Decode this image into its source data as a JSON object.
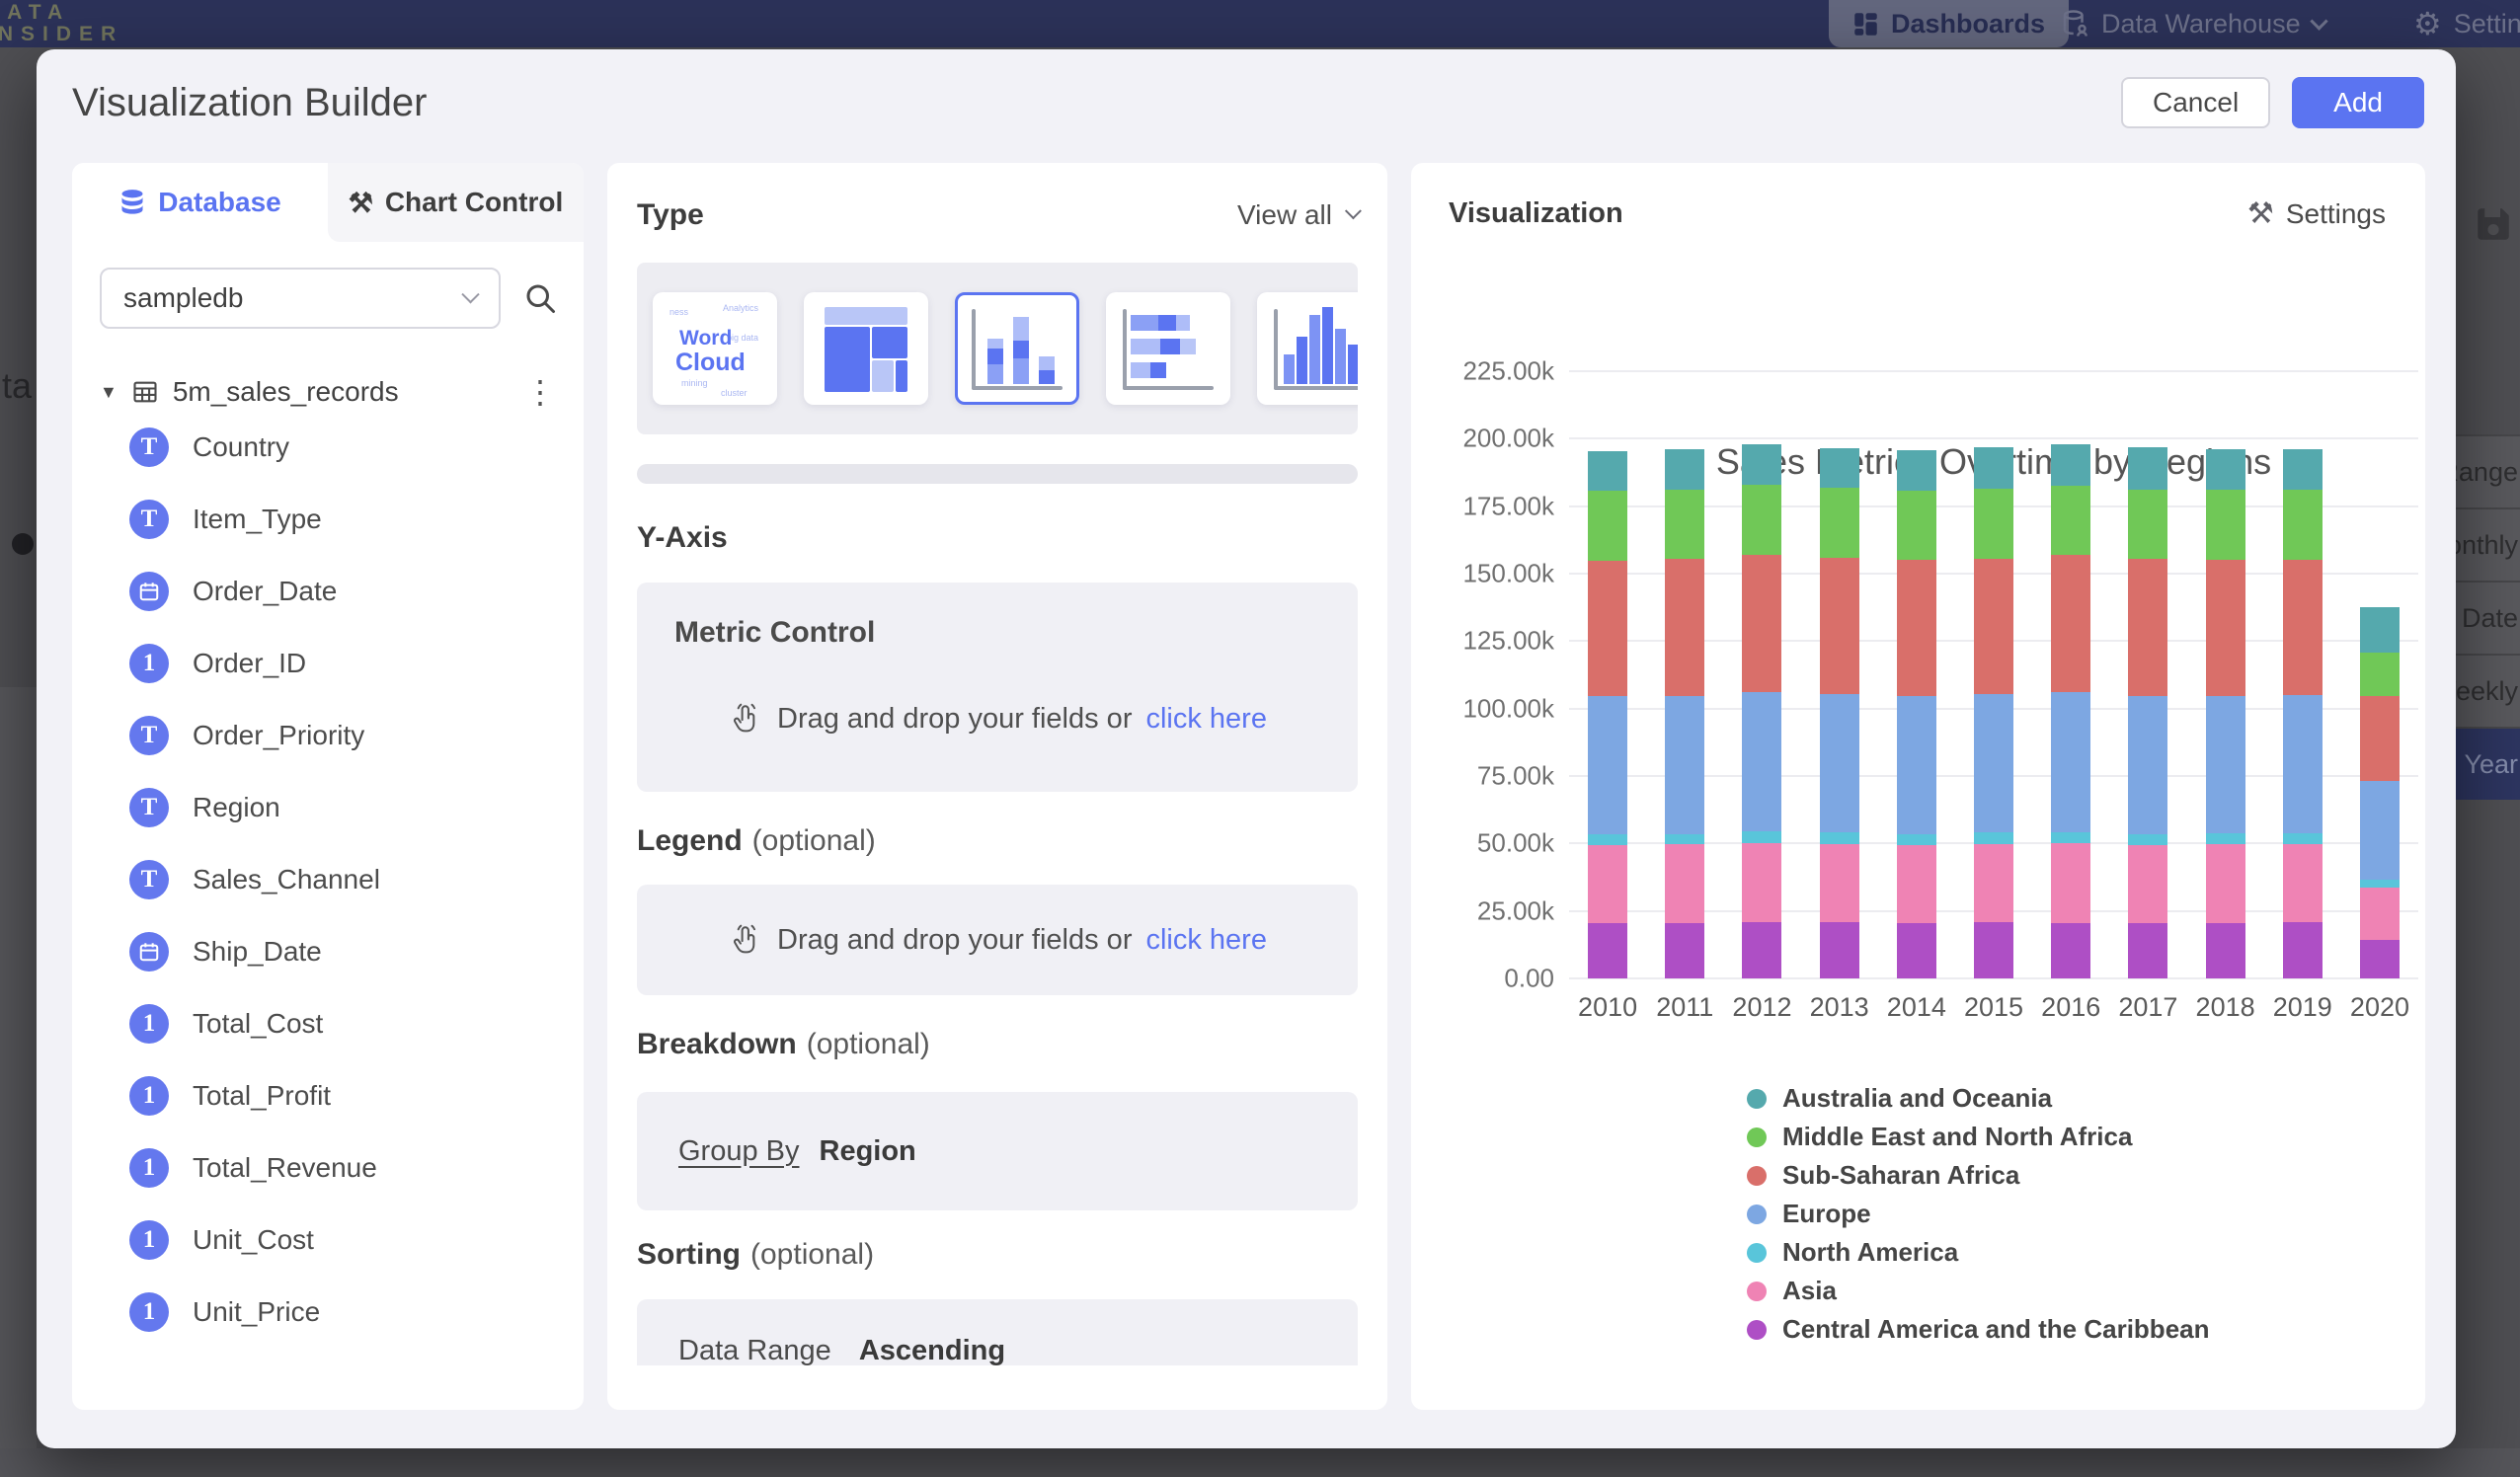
{
  "topbar": {
    "logo_line1": "DATA",
    "logo_line2": "INSIDER",
    "nav": {
      "dashboards": "Dashboards",
      "data_warehouse": "Data Warehouse",
      "settings": "Settings"
    }
  },
  "backdrop": {
    "left_fragment": "ta",
    "menu_items": [
      {
        "label": "Range",
        "selected": false
      },
      {
        "label": "Monthly",
        "selected": false
      },
      {
        "label": "Week Date",
        "selected": false
      },
      {
        "label": "Weekly",
        "selected": false
      },
      {
        "label": "Year",
        "selected": true
      }
    ]
  },
  "modal": {
    "title": "Visualization Builder",
    "cancel_label": "Cancel",
    "add_label": "Add"
  },
  "left_panel": {
    "tabs": {
      "database": "Database",
      "chart_control": "Chart Control"
    },
    "search": {
      "value": "sampledb"
    },
    "table_name": "5m_sales_records",
    "fields": [
      {
        "name": "Country",
        "type": "text"
      },
      {
        "name": "Item_Type",
        "type": "text"
      },
      {
        "name": "Order_Date",
        "type": "date"
      },
      {
        "name": "Order_ID",
        "type": "number"
      },
      {
        "name": "Order_Priority",
        "type": "text"
      },
      {
        "name": "Region",
        "type": "text"
      },
      {
        "name": "Sales_Channel",
        "type": "text"
      },
      {
        "name": "Ship_Date",
        "type": "date"
      },
      {
        "name": "Total_Cost",
        "type": "number"
      },
      {
        "name": "Total_Profit",
        "type": "number"
      },
      {
        "name": "Total_Revenue",
        "type": "number"
      },
      {
        "name": "Unit_Cost",
        "type": "number"
      },
      {
        "name": "Unit_Price",
        "type": "number"
      }
    ]
  },
  "type_section": {
    "title": "Type",
    "view_all": "View all",
    "cards": [
      {
        "kind": "word-cloud",
        "selected": false,
        "word1": "Word",
        "word2": "Cloud",
        "tiny_words": [
          "ness",
          "Analytics",
          "big data",
          "mining",
          "cluster"
        ]
      },
      {
        "kind": "treemap",
        "selected": false
      },
      {
        "kind": "stacked-column",
        "selected": true
      },
      {
        "kind": "stacked-bar",
        "selected": false
      },
      {
        "kind": "histogram",
        "selected": false
      }
    ]
  },
  "yaxis_section": {
    "title": "Y-Axis",
    "panel_title": "Metric Control",
    "drop_text": "Drag and drop your fields or",
    "drop_link": "click here"
  },
  "legend_section": {
    "title": "Legend",
    "optional": "(optional)",
    "drop_text": "Drag and drop your fields or",
    "drop_link": "click here"
  },
  "breakdown_section": {
    "title": "Breakdown",
    "optional": "(optional)",
    "group_by": "Group By",
    "value": "Region"
  },
  "sorting_section": {
    "title": "Sorting",
    "optional": "(optional)",
    "group_by": "Data Range",
    "value": "Ascending"
  },
  "visualization": {
    "title": "Visualization",
    "settings_label": "Settings"
  },
  "chart_data": {
    "type": "bar",
    "stacked": true,
    "title": "Sales Metrics Overtime by Regions",
    "categories": [
      "2010",
      "2011",
      "2012",
      "2013",
      "2014",
      "2015",
      "2016",
      "2017",
      "2018",
      "2019",
      "2020"
    ],
    "series": [
      {
        "name": "Central America and the Caribbean",
        "color": "#ae4fc5",
        "values": [
          20400,
          20600,
          20900,
          20700,
          20500,
          20800,
          20600,
          20400,
          20500,
          20700,
          14200
        ]
      },
      {
        "name": "Asia",
        "color": "#ef83b4",
        "values": [
          29100,
          29000,
          29300,
          29200,
          29000,
          29100,
          29400,
          29000,
          29100,
          29000,
          19300
        ]
      },
      {
        "name": "North America",
        "color": "#59c5da",
        "values": [
          4100,
          4000,
          4200,
          4100,
          4000,
          4100,
          4200,
          4000,
          4100,
          4000,
          3000
        ]
      },
      {
        "name": "Europe",
        "color": "#7da7e2",
        "values": [
          51000,
          51200,
          51600,
          51300,
          51000,
          51200,
          51800,
          51300,
          51000,
          51200,
          36800
        ]
      },
      {
        "name": "Sub-Saharan Africa",
        "color": "#d96f6a",
        "values": [
          50300,
          50800,
          50900,
          50700,
          50600,
          50300,
          50900,
          50800,
          50600,
          50200,
          31200
        ]
      },
      {
        "name": "Middle East and North Africa",
        "color": "#70c857",
        "values": [
          25800,
          25400,
          25900,
          25700,
          25800,
          25900,
          25800,
          25700,
          25800,
          25900,
          16100
        ]
      },
      {
        "name": "Australia and Oceania",
        "color": "#55a9ad",
        "values": [
          14800,
          15000,
          15100,
          14900,
          15000,
          15600,
          15200,
          15700,
          15000,
          15000,
          16900
        ]
      }
    ],
    "legend": [
      "Australia and Oceania",
      "Middle East and North Africa",
      "Sub-Saharan Africa",
      "Europe",
      "North America",
      "Asia",
      "Central America and the Caribbean"
    ],
    "ylim": [
      0,
      225000
    ],
    "ytick_step": 25000,
    "ytick_labels": [
      "0.00",
      "25.00k",
      "50.00k",
      "75.00k",
      "100.00k",
      "125.00k",
      "150.00k",
      "175.00k",
      "200.00k",
      "225.00k"
    ],
    "grid": true,
    "legend_position": "bottom-left",
    "xlabel": "",
    "ylabel": ""
  }
}
